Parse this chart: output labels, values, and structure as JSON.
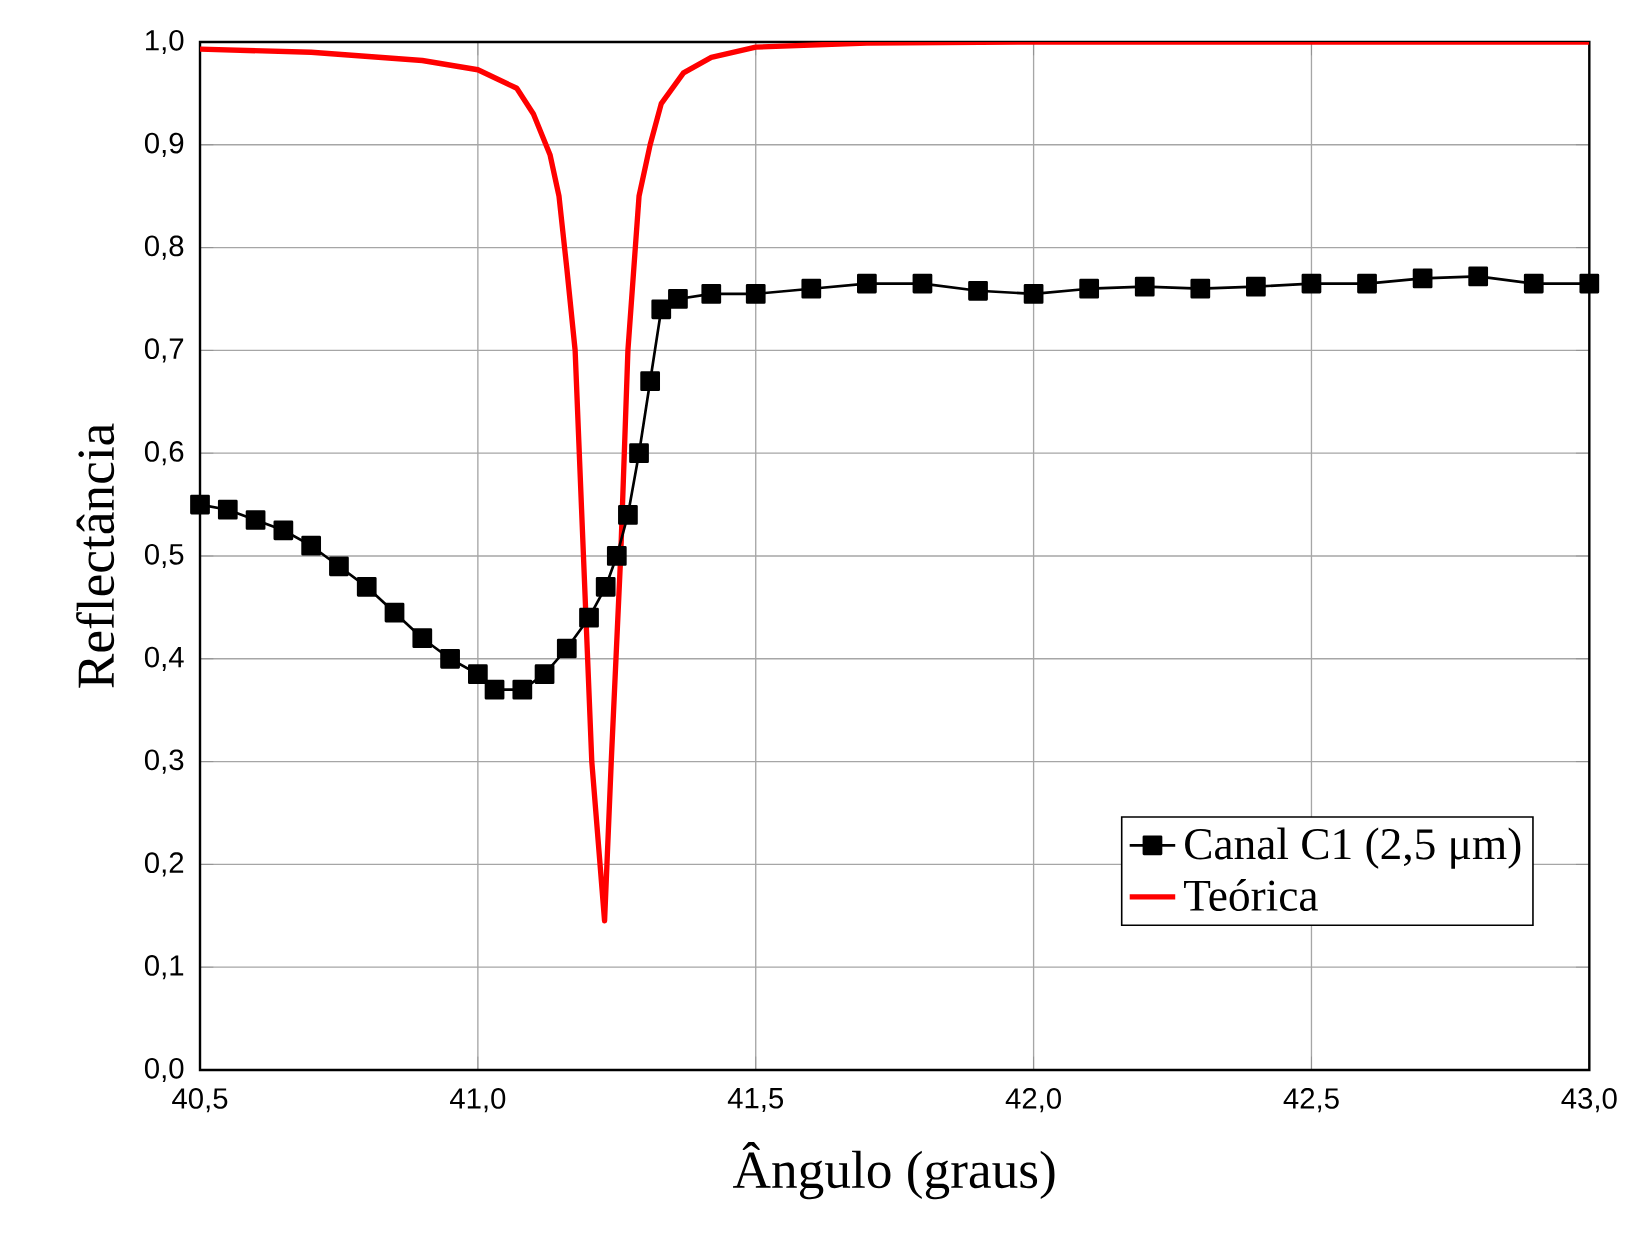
{
  "chart_data": {
    "type": "line",
    "xlabel": "Ângulo (graus)",
    "ylabel": "Reflectância",
    "xlim": [
      40.5,
      43.0
    ],
    "xticks": [
      {
        "value": 40.5,
        "label": "40,5"
      },
      {
        "value": 41.0,
        "label": "41,0"
      },
      {
        "value": 41.5,
        "label": "41,5"
      },
      {
        "value": 42.0,
        "label": "42,0"
      },
      {
        "value": 42.5,
        "label": "42,5"
      },
      {
        "value": 43.0,
        "label": "43,0"
      }
    ],
    "ylim": [
      0,
      1.0
    ],
    "yticks": [
      {
        "value": 0,
        "label": "0,0"
      },
      {
        "value": 0.1,
        "label": "0,1"
      },
      {
        "value": 0.2,
        "label": "0,2"
      },
      {
        "value": 0.3,
        "label": "0,3"
      },
      {
        "value": 0.4,
        "label": "0,4"
      },
      {
        "value": 0.5,
        "label": "0,5"
      },
      {
        "value": 0.6,
        "label": "0,6"
      },
      {
        "value": 0.7,
        "label": "0,7"
      },
      {
        "value": 0.8,
        "label": "0,8"
      },
      {
        "value": 0.9,
        "label": "0,9"
      },
      {
        "value": 1.0,
        "label": "1,0"
      }
    ],
    "grid": true,
    "legend": "bottom right",
    "series": [
      {
        "name": "Canal C1 (2,5 μm)",
        "color": "#000000",
        "marker": "square",
        "x": [
          40.5,
          40.55,
          40.6,
          40.65,
          40.7,
          40.75,
          40.8,
          40.85,
          40.9,
          40.95,
          41.0,
          41.03,
          41.08,
          41.12,
          41.16,
          41.2,
          41.23,
          41.25,
          41.27,
          41.29,
          41.31,
          41.33,
          41.36,
          41.42,
          41.5,
          41.6,
          41.7,
          41.8,
          41.9,
          42.0,
          42.1,
          42.2,
          42.3,
          42.4,
          42.5,
          42.6,
          42.7,
          42.8,
          42.9,
          43.0
        ],
        "values": [
          0.55,
          0.545,
          0.535,
          0.525,
          0.51,
          0.49,
          0.47,
          0.445,
          0.42,
          0.4,
          0.385,
          0.37,
          0.37,
          0.385,
          0.41,
          0.44,
          0.47,
          0.5,
          0.54,
          0.6,
          0.67,
          0.74,
          0.75,
          0.755,
          0.755,
          0.76,
          0.765,
          0.765,
          0.758,
          0.755,
          0.76,
          0.762,
          0.76,
          0.762,
          0.765,
          0.765,
          0.77,
          0.772,
          0.765,
          0.765
        ]
      },
      {
        "name": "Teórica",
        "color": "#ff0000",
        "marker": "none",
        "x": [
          40.5,
          40.7,
          40.9,
          41.0,
          41.07,
          41.1,
          41.13,
          41.146,
          41.16,
          41.175,
          41.19,
          41.205,
          41.228,
          41.24,
          41.257,
          41.27,
          41.29,
          41.31,
          41.33,
          41.37,
          41.42,
          41.5,
          41.7,
          42.0,
          43.0
        ],
        "values": [
          0.993,
          0.99,
          0.982,
          0.973,
          0.955,
          0.93,
          0.89,
          0.85,
          0.78,
          0.7,
          0.5,
          0.3,
          0.145,
          0.3,
          0.5,
          0.7,
          0.85,
          0.9,
          0.94,
          0.97,
          0.985,
          0.995,
          0.999,
          1.0,
          1.0
        ]
      }
    ]
  }
}
